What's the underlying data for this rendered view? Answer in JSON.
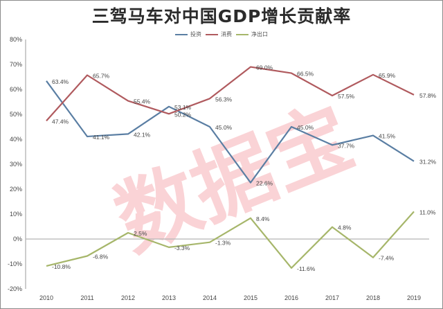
{
  "chart_data": {
    "type": "line",
    "title": "三驾马车对中国GDP增长贡献率",
    "xlabel": "",
    "ylabel": "",
    "categories": [
      "2010",
      "2011",
      "2012",
      "2013",
      "2014",
      "2015",
      "2016",
      "2017",
      "2018",
      "2019"
    ],
    "series": [
      {
        "name": "投资",
        "color": "#5a7ea3",
        "values": [
          63.4,
          41.1,
          42.1,
          53.1,
          45.0,
          22.6,
          45.0,
          37.7,
          41.5,
          31.2
        ],
        "labels": [
          "63.4%",
          "41.1%",
          "42.1%",
          "53.1%",
          "45.0%",
          "22.6%",
          "45.0%",
          "37.7%",
          "41.5%",
          "31.2%"
        ]
      },
      {
        "name": "消费",
        "color": "#b05a5e",
        "values": [
          47.4,
          65.7,
          55.4,
          50.2,
          56.3,
          69.0,
          66.5,
          57.5,
          65.9,
          57.8
        ],
        "labels": [
          "47.4%",
          "65.7%",
          "55.4%",
          "50.2%",
          "56.3%",
          "69.0%",
          "66.5%",
          "57.5%",
          "65.9%",
          "57.8%"
        ]
      },
      {
        "name": "净出口",
        "color": "#a6b66a",
        "values": [
          -10.8,
          -6.8,
          2.5,
          -3.3,
          -1.3,
          8.4,
          -11.6,
          4.8,
          -7.4,
          11.0
        ],
        "labels": [
          "-10.8%",
          "-6.8%",
          "2.5%",
          "-3.3%",
          "-1.3%",
          "8.4%",
          "-11.6%",
          "4.8%",
          "-7.4%",
          "11.0%"
        ]
      }
    ],
    "yticks": [
      "80%",
      "70%",
      "60%",
      "50%",
      "40%",
      "30%",
      "20%",
      "10%",
      "0%",
      "-10%",
      "-20%"
    ],
    "ylim": [
      -20,
      80
    ],
    "grid": false,
    "legend_position": "top-center",
    "annotations": [
      "数据宝"
    ]
  },
  "watermark": "数据宝"
}
